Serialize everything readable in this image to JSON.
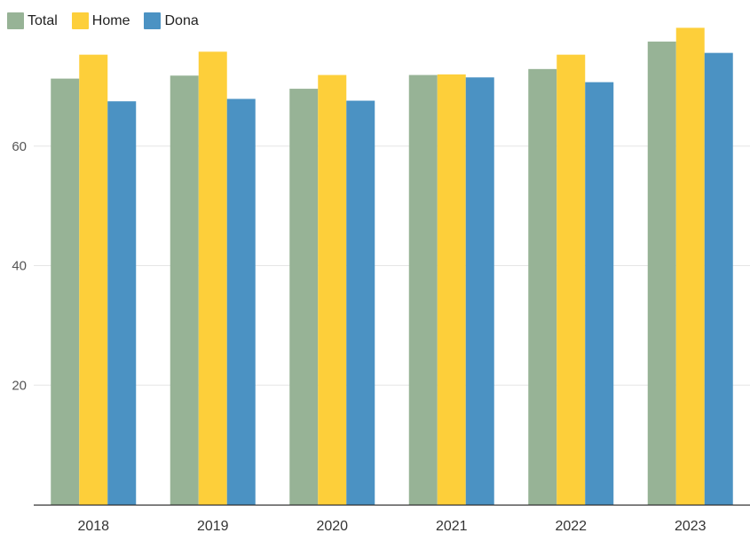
{
  "chart_data": {
    "type": "bar",
    "title": "",
    "xlabel": "",
    "ylabel": "",
    "categories": [
      "2018",
      "2019",
      "2020",
      "2021",
      "2022",
      "2023"
    ],
    "series": [
      {
        "name": "Total",
        "color": "#97b396",
        "values": [
          71.3,
          71.8,
          69.6,
          71.9,
          72.9,
          77.5
        ]
      },
      {
        "name": "Home",
        "color": "#fdcf3a",
        "values": [
          75.3,
          75.8,
          71.9,
          72.0,
          75.3,
          79.8
        ]
      },
      {
        "name": "Dona",
        "color": "#4b92c3",
        "values": [
          67.5,
          67.9,
          67.6,
          71.5,
          70.7,
          75.6
        ]
      }
    ],
    "ylim": [
      0,
      80
    ],
    "yticks": [
      20,
      40,
      60
    ],
    "grid": true,
    "legend_position": "top-left"
  }
}
